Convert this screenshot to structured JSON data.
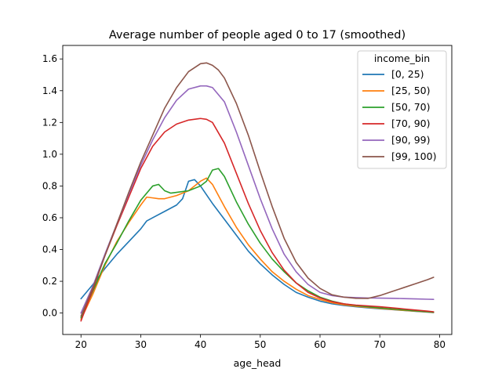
{
  "chart_data": {
    "type": "line",
    "title": "Average number of people aged 0 to 17 (smoothed)",
    "xlabel": "age_head",
    "ylabel": "",
    "xlim": [
      16.95,
      82.05
    ],
    "ylim": [
      -0.135,
      1.685
    ],
    "xticks": [
      20,
      30,
      40,
      50,
      60,
      70,
      80
    ],
    "yticks": [
      0.0,
      0.2,
      0.4,
      0.6,
      0.8,
      1.0,
      1.2,
      1.4,
      1.6
    ],
    "ytick_labels": [
      "0.0",
      "0.2",
      "0.4",
      "0.6",
      "0.8",
      "1.0",
      "1.2",
      "1.4",
      "1.6"
    ],
    "grid": false,
    "legend": {
      "title": "income_bin",
      "position": "top-right"
    },
    "series": [
      {
        "name": "[0, 25)",
        "color": "#1f77b4",
        "x": [
          20,
          22,
          24,
          26,
          28,
          30,
          31,
          32,
          34,
          36,
          37,
          38,
          39,
          40,
          42,
          44,
          46,
          48,
          50,
          52,
          54,
          56,
          58,
          60,
          62,
          64,
          66,
          68,
          70,
          72,
          74,
          76,
          78,
          79
        ],
        "y": [
          0.09,
          0.18,
          0.28,
          0.37,
          0.45,
          0.53,
          0.58,
          0.6,
          0.64,
          0.68,
          0.72,
          0.83,
          0.84,
          0.8,
          0.69,
          0.59,
          0.49,
          0.39,
          0.31,
          0.24,
          0.18,
          0.13,
          0.1,
          0.075,
          0.058,
          0.048,
          0.04,
          0.033,
          0.027,
          0.022,
          0.016,
          0.011,
          0.006,
          0.003
        ]
      },
      {
        "name": "[25, 50)",
        "color": "#ff7f0e",
        "x": [
          20,
          22,
          24,
          26,
          28,
          30,
          31,
          32,
          33,
          34,
          36,
          38,
          40,
          41,
          42,
          44,
          46,
          48,
          50,
          52,
          54,
          56,
          58,
          60,
          62,
          64,
          66,
          68,
          70,
          72,
          74,
          76,
          78,
          79
        ],
        "y": [
          -0.04,
          0.12,
          0.3,
          0.45,
          0.57,
          0.68,
          0.73,
          0.725,
          0.72,
          0.72,
          0.74,
          0.77,
          0.83,
          0.85,
          0.81,
          0.67,
          0.54,
          0.43,
          0.34,
          0.26,
          0.2,
          0.15,
          0.11,
          0.085,
          0.065,
          0.052,
          0.043,
          0.036,
          0.029,
          0.023,
          0.017,
          0.012,
          0.007,
          0.004
        ]
      },
      {
        "name": "[50, 70)",
        "color": "#2ca02c",
        "x": [
          20,
          22,
          24,
          26,
          28,
          30,
          32,
          33,
          34,
          35,
          36,
          38,
          40,
          41,
          42,
          43,
          44,
          46,
          48,
          50,
          52,
          54,
          56,
          58,
          60,
          62,
          64,
          66,
          68,
          70,
          72,
          74,
          76,
          78,
          79
        ],
        "y": [
          -0.03,
          0.14,
          0.31,
          0.44,
          0.58,
          0.71,
          0.8,
          0.81,
          0.77,
          0.755,
          0.76,
          0.77,
          0.8,
          0.83,
          0.9,
          0.91,
          0.86,
          0.7,
          0.56,
          0.44,
          0.34,
          0.26,
          0.19,
          0.14,
          0.1,
          0.075,
          0.058,
          0.047,
          0.04,
          0.033,
          0.026,
          0.02,
          0.014,
          0.008,
          0.005
        ]
      },
      {
        "name": "[70, 90)",
        "color": "#d62728",
        "x": [
          20,
          22,
          24,
          26,
          28,
          30,
          32,
          34,
          36,
          38,
          40,
          41,
          42,
          44,
          46,
          48,
          50,
          52,
          54,
          56,
          58,
          60,
          62,
          64,
          66,
          68,
          70,
          72,
          74,
          76,
          78,
          79
        ],
        "y": [
          -0.05,
          0.15,
          0.36,
          0.55,
          0.73,
          0.91,
          1.05,
          1.14,
          1.19,
          1.215,
          1.225,
          1.22,
          1.2,
          1.07,
          0.88,
          0.69,
          0.52,
          0.38,
          0.27,
          0.19,
          0.13,
          0.095,
          0.072,
          0.058,
          0.05,
          0.045,
          0.04,
          0.033,
          0.026,
          0.019,
          0.012,
          0.008
        ]
      },
      {
        "name": "[90, 99)",
        "color": "#9467bd",
        "x": [
          20,
          22,
          24,
          26,
          28,
          30,
          32,
          34,
          36,
          38,
          40,
          41,
          42,
          44,
          46,
          48,
          50,
          52,
          54,
          56,
          58,
          60,
          62,
          64,
          66,
          68,
          70,
          72,
          74,
          76,
          78,
          79
        ],
        "y": [
          0.0,
          0.17,
          0.37,
          0.56,
          0.75,
          0.93,
          1.09,
          1.23,
          1.34,
          1.41,
          1.43,
          1.43,
          1.42,
          1.33,
          1.14,
          0.93,
          0.72,
          0.53,
          0.37,
          0.26,
          0.18,
          0.13,
          0.11,
          0.1,
          0.097,
          0.095,
          0.094,
          0.093,
          0.091,
          0.089,
          0.087,
          0.086
        ]
      },
      {
        "name": "[99, 100)",
        "color": "#8c564b",
        "x": [
          20,
          22,
          24,
          26,
          28,
          30,
          32,
          34,
          36,
          38,
          40,
          41,
          42,
          43,
          44,
          46,
          48,
          50,
          52,
          54,
          56,
          58,
          60,
          62,
          64,
          66,
          68,
          70,
          72,
          74,
          76,
          78,
          79
        ],
        "y": [
          -0.02,
          0.16,
          0.36,
          0.56,
          0.76,
          0.95,
          1.12,
          1.29,
          1.42,
          1.52,
          1.57,
          1.575,
          1.56,
          1.53,
          1.48,
          1.32,
          1.12,
          0.89,
          0.67,
          0.47,
          0.32,
          0.22,
          0.155,
          0.115,
          0.1,
          0.093,
          0.092,
          0.11,
          0.135,
          0.16,
          0.185,
          0.21,
          0.225
        ]
      }
    ]
  }
}
